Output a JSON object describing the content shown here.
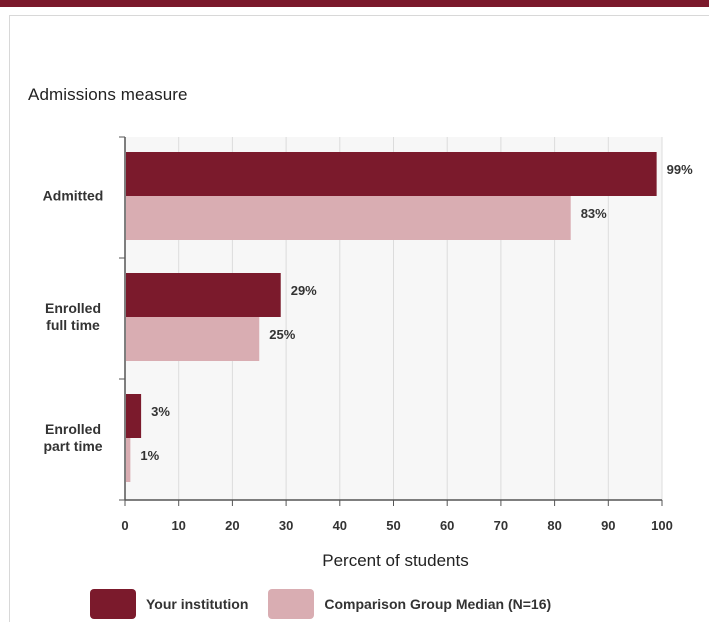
{
  "colors": {
    "primary": "#7b1a2c",
    "comparison": "#d9adb2",
    "plot_bg": "#f7f7f7",
    "grid": "#dcdcdc"
  },
  "chart_data": {
    "type": "bar",
    "orientation": "horizontal",
    "subtitle": "Admissions measure",
    "categories": [
      [
        "Admitted"
      ],
      [
        "Enrolled",
        "full time"
      ],
      [
        "Enrolled",
        "part time"
      ]
    ],
    "series": [
      {
        "name": "Your institution",
        "values": [
          99,
          29,
          3
        ],
        "labels": [
          "99%",
          "29%",
          "3%"
        ],
        "color": "#7b1a2c"
      },
      {
        "name": "Comparison Group Median (N=16)",
        "values": [
          83,
          25,
          1
        ],
        "labels": [
          "83%",
          "25%",
          "1%"
        ],
        "color": "#d9adb2"
      }
    ],
    "xlabel": "Percent of students",
    "xlim": [
      0,
      100
    ],
    "xticks": [
      "0",
      "10",
      "20",
      "30",
      "40",
      "50",
      "60",
      "70",
      "80",
      "90",
      "100"
    ],
    "grid": true,
    "legend_position": "bottom"
  }
}
